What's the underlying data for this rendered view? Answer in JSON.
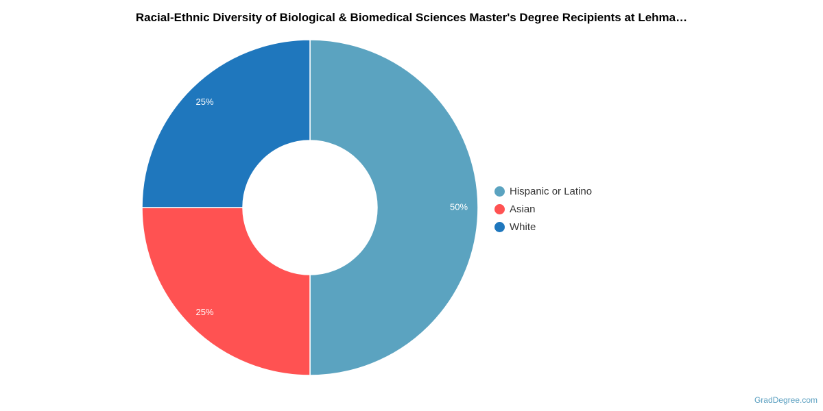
{
  "chart_data": {
    "type": "pie",
    "variant": "donut",
    "title": "Racial-Ethnic Diversity of Biological & Biomedical Sciences Master's Degree Recipients at Lehma…",
    "slices": [
      {
        "label": "Hispanic or Latino",
        "value": 50,
        "display": "50%",
        "color": "#5ba3c0"
      },
      {
        "label": "Asian",
        "value": 25,
        "display": "25%",
        "color": "#ff5252"
      },
      {
        "label": "White",
        "value": 25,
        "display": "25%",
        "color": "#1f77bd"
      }
    ],
    "legend_position": "right"
  },
  "watermark": "GradDegree.com"
}
